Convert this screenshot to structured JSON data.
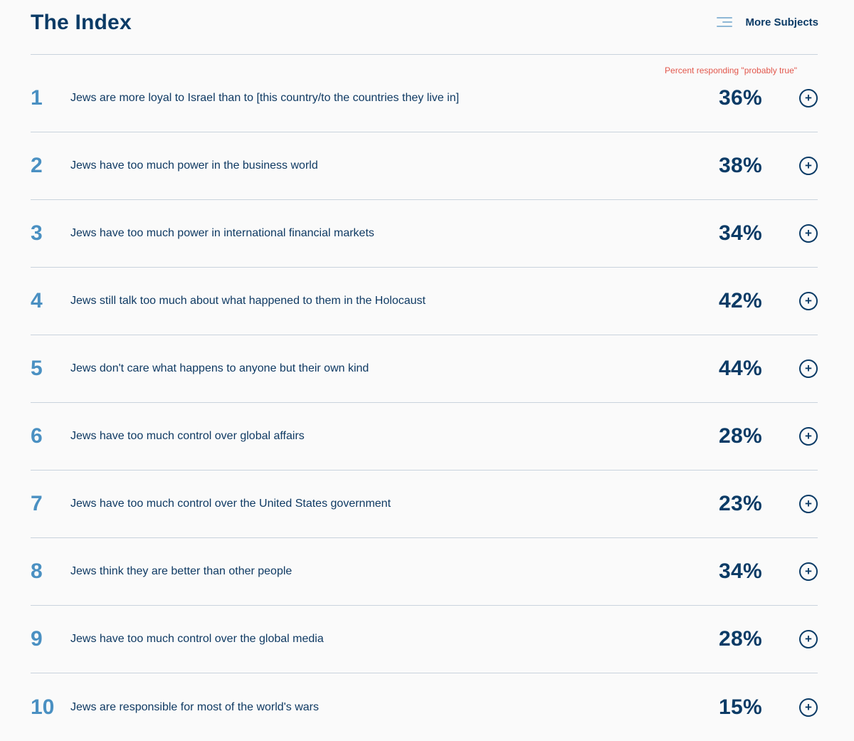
{
  "header": {
    "title": "The Index",
    "more_subjects_label": "More Subjects",
    "menu_icon": "hamburger-menu-icon"
  },
  "table": {
    "value_caption": "Percent responding \"probably true\"",
    "expand_icon": "plus-circle-icon",
    "rows": [
      {
        "number": "1",
        "statement": "Jews are more loyal to Israel than to [this country/to the countries they live in]",
        "value": "36%"
      },
      {
        "number": "2",
        "statement": "Jews have too much power in the business world",
        "value": "38%"
      },
      {
        "number": "3",
        "statement": "Jews have too much power in international financial markets",
        "value": "34%"
      },
      {
        "number": "4",
        "statement": "Jews still talk too much about what happened to them in the Holocaust",
        "value": "42%"
      },
      {
        "number": "5",
        "statement": "Jews don't care what happens to anyone but their own kind",
        "value": "44%"
      },
      {
        "number": "6",
        "statement": "Jews have too much control over global affairs",
        "value": "28%"
      },
      {
        "number": "7",
        "statement": "Jews have too much control over the United States government",
        "value": "23%"
      },
      {
        "number": "8",
        "statement": "Jews think they are better than other people",
        "value": "34%"
      },
      {
        "number": "9",
        "statement": "Jews have too much control over the global media",
        "value": "28%"
      },
      {
        "number": "10",
        "statement": "Jews are responsible for most of the world's wars",
        "value": "15%"
      }
    ]
  },
  "colors": {
    "title": "#0b3b66",
    "row_number": "#4a90c2",
    "caption": "#e2574c",
    "divider": "#c9d3dd",
    "background": "#fafafa"
  }
}
